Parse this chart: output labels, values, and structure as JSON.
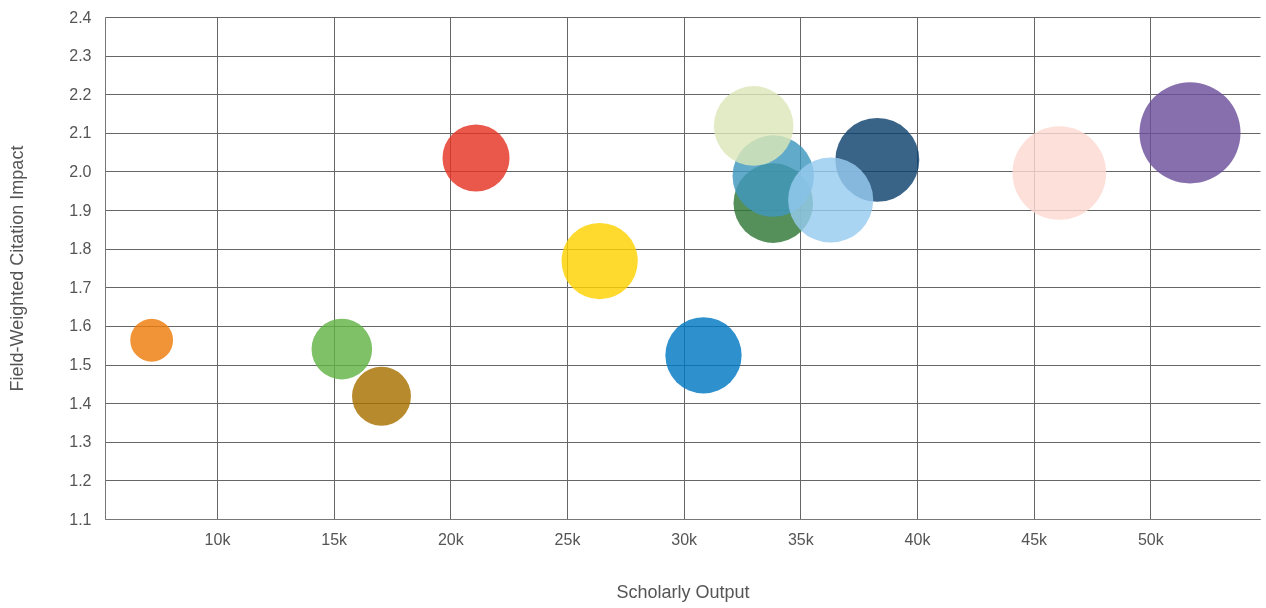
{
  "chart_data": {
    "type": "bubble",
    "xlabel": "Scholarly Output",
    "ylabel": "Field-Weighted Citation Impact",
    "x": [
      7200,
      15350,
      17050,
      21100,
      26400,
      30850,
      33840,
      33840,
      33000,
      38300,
      36300,
      46100,
      51700
    ],
    "values": [
      1.563,
      1.54,
      1.418,
      2.035,
      1.768,
      1.524,
      1.918,
      1.988,
      2.118,
      2.03,
      1.926,
      1.996,
      2.1
    ],
    "sizes": [
      0.18,
      0.36,
      0.34,
      0.44,
      0.57,
      0.57,
      0.62,
      0.65,
      0.62,
      0.69,
      0.71,
      0.86,
      1
    ],
    "colors": [
      "#ee7d0b",
      "#62b346",
      "#a77000",
      "#e53323",
      "#ffd200",
      "#0078c1",
      "#2f7737",
      "#3f97bd",
      "#dce6b8",
      "#0f416e",
      "#96cbef",
      "#fcd9d1",
      "#6c4f9b"
    ],
    "xlim": [
      5200,
      54700
    ],
    "xticks": [
      {
        "value": 10000,
        "label": "10k"
      },
      {
        "value": 15000,
        "label": "15k"
      },
      {
        "value": 20000,
        "label": "20k"
      },
      {
        "value": 25000,
        "label": "25k"
      },
      {
        "value": 30000,
        "label": "30k"
      },
      {
        "value": 35000,
        "label": "35k"
      },
      {
        "value": 40000,
        "label": "40k"
      },
      {
        "value": 45000,
        "label": "45k"
      },
      {
        "value": 50000,
        "label": "50k"
      }
    ],
    "ylim": [
      1.1,
      2.4
    ],
    "yticks": [
      1.1,
      1.2,
      1.3,
      1.4,
      1.5,
      1.6,
      1.7,
      1.8,
      1.9,
      {
        "value": 2,
        "label": "2.0"
      },
      2.1,
      2.2,
      2.3,
      2.4
    ],
    "grid": true
  }
}
